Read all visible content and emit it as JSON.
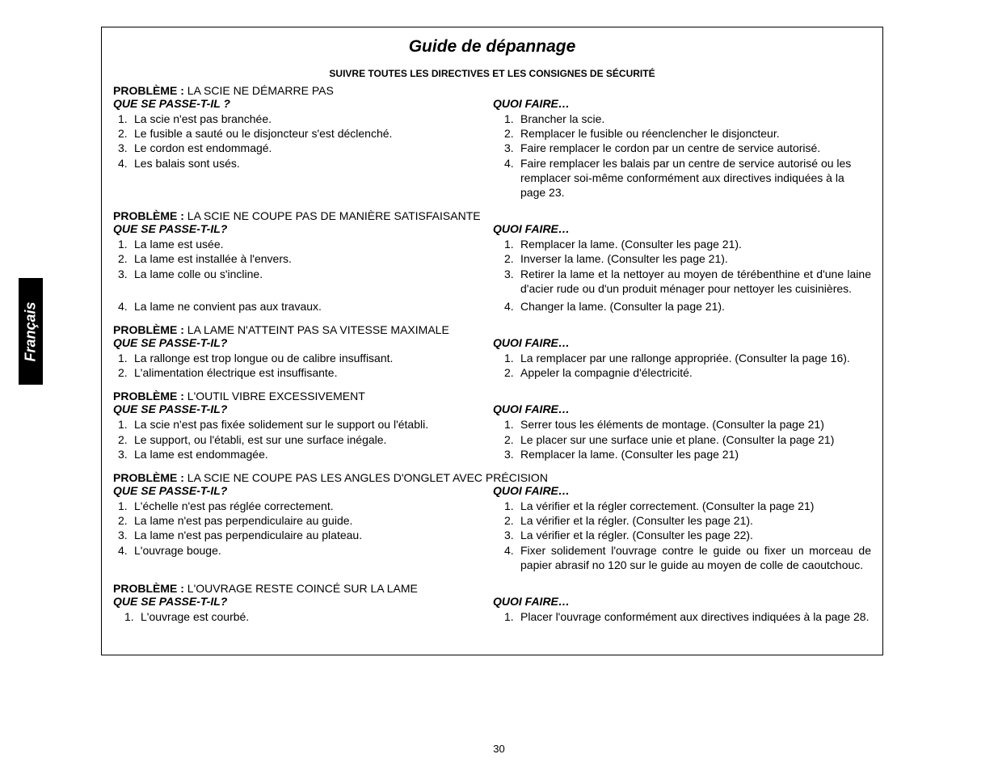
{
  "language_tab": "Français",
  "page_number": "30",
  "title": "Guide de dépannage",
  "subtitle": "SUIVRE TOUTES LES DIRECTIVES ET LES CONSIGNES DE SÉCURITÉ",
  "labels": {
    "problem": "PROBLÈME :",
    "what_q": "QUE SE PASSE-T-IL ?",
    "what_noq": "QUE SE PASSE-T-IL?",
    "todo": "QUOI FAIRE…"
  },
  "sections": [
    {
      "problem": "LA SCIE NE DÉMARRE PAS",
      "what_key": "what_q",
      "items": [
        {
          "n": "1.",
          "l": "La scie n'est pas branchée.",
          "r": "Brancher la scie."
        },
        {
          "n": "2.",
          "l": "Le fusible a sauté ou le disjoncteur s'est déclenché.",
          "r": "Remplacer le fusible ou réenclencher le disjoncteur."
        },
        {
          "n": "3.",
          "l": "Le cordon est endommagé.",
          "r": "Faire remplacer le cordon par un centre de service autorisé."
        },
        {
          "n": "4.",
          "l": "Les balais sont usés.",
          "r": "Faire remplacer les balais par un centre de service autorisé ou les remplacer soi-même conformément aux directives indiquées à la page 23."
        }
      ]
    },
    {
      "problem": "LA SCIE NE COUPE PAS DE MANIÈRE SATISFAISANTE",
      "what_key": "what_noq",
      "items": [
        {
          "n": "1.",
          "l": "La lame est usée.",
          "r": "Remplacer la lame. (Consulter les page 21)."
        },
        {
          "n": "2.",
          "l": "La lame est installée à l'envers.",
          "r": "Inverser la lame. (Consulter les page 21)."
        },
        {
          "n": "3.",
          "l": "La lame colle ou s'incline.",
          "r": "Retirer la lame et la nettoyer au moyen de térébenthine et d'une laine d'acier rude ou d'un produit ménager pour nettoyer les cuisinières.",
          "justify": true
        },
        {
          "n": "4.",
          "l": "La lame ne convient pas aux travaux.",
          "r": "Changer la lame. (Consulter la page 21).",
          "gap": true
        }
      ]
    },
    {
      "problem": "LA LAME N'ATTEINT PAS SA VITESSE MAXIMALE",
      "what_key": "what_noq",
      "items": [
        {
          "n": "1.",
          "l": "La rallonge est trop longue ou de calibre insuffisant.",
          "r": "La remplacer par une rallonge appropriée. (Consulter la page 16)."
        },
        {
          "n": "2.",
          "l": "L'alimentation électrique est insuffisante.",
          "r": "Appeler la compagnie d'électricité."
        }
      ]
    },
    {
      "problem": "L'OUTIL VIBRE EXCESSIVEMENT",
      "what_key": "what_noq",
      "items": [
        {
          "n": "1.",
          "l": "La scie n'est pas fixée solidement sur le support ou l'établi.",
          "r": "Serrer tous les éléments de montage. (Consulter la page 21)"
        },
        {
          "n": "2.",
          "l": "Le support, ou l'établi, est sur une surface inégale.",
          "r": "Le placer sur une surface unie et plane. (Consulter la page 21)"
        },
        {
          "n": "3.",
          "l": "La lame est endommagée.",
          "r": "Remplacer la lame. (Consulter les page 21)"
        }
      ]
    },
    {
      "problem": "LA SCIE NE COUPE PAS LES ANGLES D'ONGLET AVEC PRÉCISION",
      "what_key": "what_noq",
      "items": [
        {
          "n": "1.",
          "l": "L'échelle n'est pas réglée correctement.",
          "r": "La vérifier et la régler correctement. (Consulter la page 21)"
        },
        {
          "n": "2.",
          "l": "La lame n'est pas perpendiculaire au guide.",
          "r": "La vérifier et la régler. (Consulter les page 21)."
        },
        {
          "n": "3.",
          "l": "La lame n'est pas perpendiculaire au plateau.",
          "r": "La vérifier et la régler. (Consulter les page 22)."
        },
        {
          "n": "4.",
          "l": "L'ouvrage bouge.",
          "r": "Fixer solidement l'ouvrage contre le guide ou fixer un morceau de papier abrasif no 120 sur le guide au moyen de colle de caoutchouc.",
          "justify": true
        }
      ]
    },
    {
      "problem": "L'OUVRAGE RESTE COINCÉ SUR LA LAME",
      "what_key": "what_noq",
      "items": [
        {
          "n": "1.",
          "l": "L'ouvrage est courbé.",
          "r": "Placer l'ouvrage conformément aux directives indiquées à la page 28.",
          "indent": true
        }
      ]
    }
  ],
  "colors": {
    "text": "#000000",
    "background": "#ffffff",
    "tab_bg": "#000000",
    "tab_fg": "#ffffff",
    "border": "#000000"
  },
  "typography": {
    "title_fontsize": 21,
    "subtitle_fontsize": 12,
    "body_fontsize": 14,
    "tab_fontsize": 18
  }
}
